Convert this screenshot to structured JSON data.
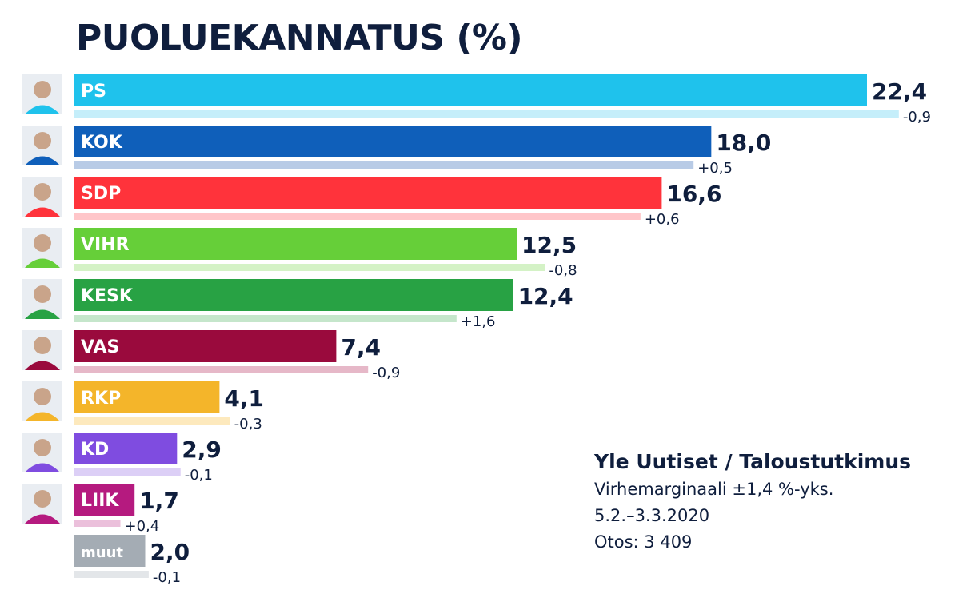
{
  "chart_data": {
    "type": "bar",
    "orientation": "horizontal",
    "title": "PUOLUEKANNATUS (%)",
    "categories": [
      "PS",
      "KOK",
      "SDP",
      "VIHR",
      "KESK",
      "VAS",
      "RKP",
      "KD",
      "LIIK",
      "muut"
    ],
    "values": [
      22.4,
      18.0,
      16.6,
      12.5,
      12.4,
      7.4,
      4.1,
      2.9,
      1.7,
      2.0
    ],
    "value_labels": [
      "22,4",
      "18,0",
      "16,6",
      "12,5",
      "12,4",
      "7,4",
      "4,1",
      "2,9",
      "1,7",
      "2,0"
    ],
    "previous_values": [
      23.3,
      17.5,
      16.0,
      13.3,
      10.8,
      8.3,
      4.4,
      3.0,
      1.3,
      2.1
    ],
    "change_labels": [
      "-0,9",
      "+0,5",
      "+0,6",
      "-0,8",
      "+1,6",
      "-0,9",
      "-0,3",
      "-0,1",
      "+0,4",
      "-0,1"
    ],
    "colors": [
      "#1fc2ec",
      "#0f5fba",
      "#ff333b",
      "#66cf39",
      "#28a244",
      "#9a0a3d",
      "#f4b52a",
      "#7f4ce0",
      "#b51a7f",
      "#a4acb4"
    ],
    "previous_colors": [
      "#c5eefa",
      "#b8cbe6",
      "#ffc6c9",
      "#d4f2c6",
      "#c5e6cb",
      "#e6b8c8",
      "#fde9bd",
      "#dccff6",
      "#ebc0db",
      "#e3e6e9"
    ],
    "avatars": [
      "PS",
      "KOK",
      "SDP",
      "VIHR",
      "KESK",
      "VAS",
      "RKP",
      "KD",
      "LIIK",
      ""
    ],
    "xlim": [
      0,
      22.4
    ]
  },
  "source": {
    "title": "Yle Uutiset / Taloustutkimus",
    "margin": "Virhemarginaali ±1,4 %-yks.",
    "dates": "5.2.–3.3.2020",
    "sample": "Otos: 3 409"
  }
}
